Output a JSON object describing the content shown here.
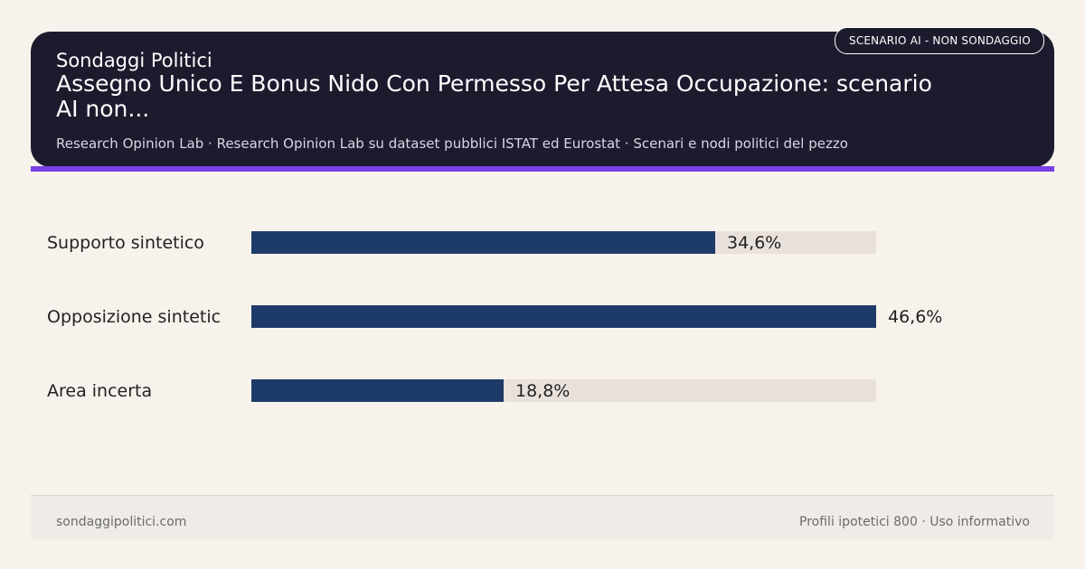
{
  "header": {
    "badge": "SCENARIO AI - NON SONDAGGIO",
    "kicker": "Sondaggi Politici",
    "title": "Assegno Unico E Bonus Nido Con Permesso Per Attesa Occupazione: scenario AI non...",
    "subtitle": "Research Opinion Lab · Research Opinion Lab su dataset pubblici ISTAT ed Eurostat · Scenari e nodi politici del pezzo"
  },
  "chart_data": {
    "type": "bar",
    "orientation": "horizontal",
    "categories": [
      "Supporto sintetico",
      "Opposizione sintetic",
      "Area incerta"
    ],
    "values": [
      34.6,
      46.6,
      18.8
    ],
    "value_labels": [
      "34,6%",
      "46,6%",
      "18,8%"
    ],
    "xlim": [
      0,
      46.6
    ],
    "colors": {
      "bar": "#1e3a68",
      "track": "#e9e1db"
    }
  },
  "footer": {
    "site": "sondaggipolitici.com",
    "note": "Profili ipotetici 800 · Uso informativo"
  }
}
